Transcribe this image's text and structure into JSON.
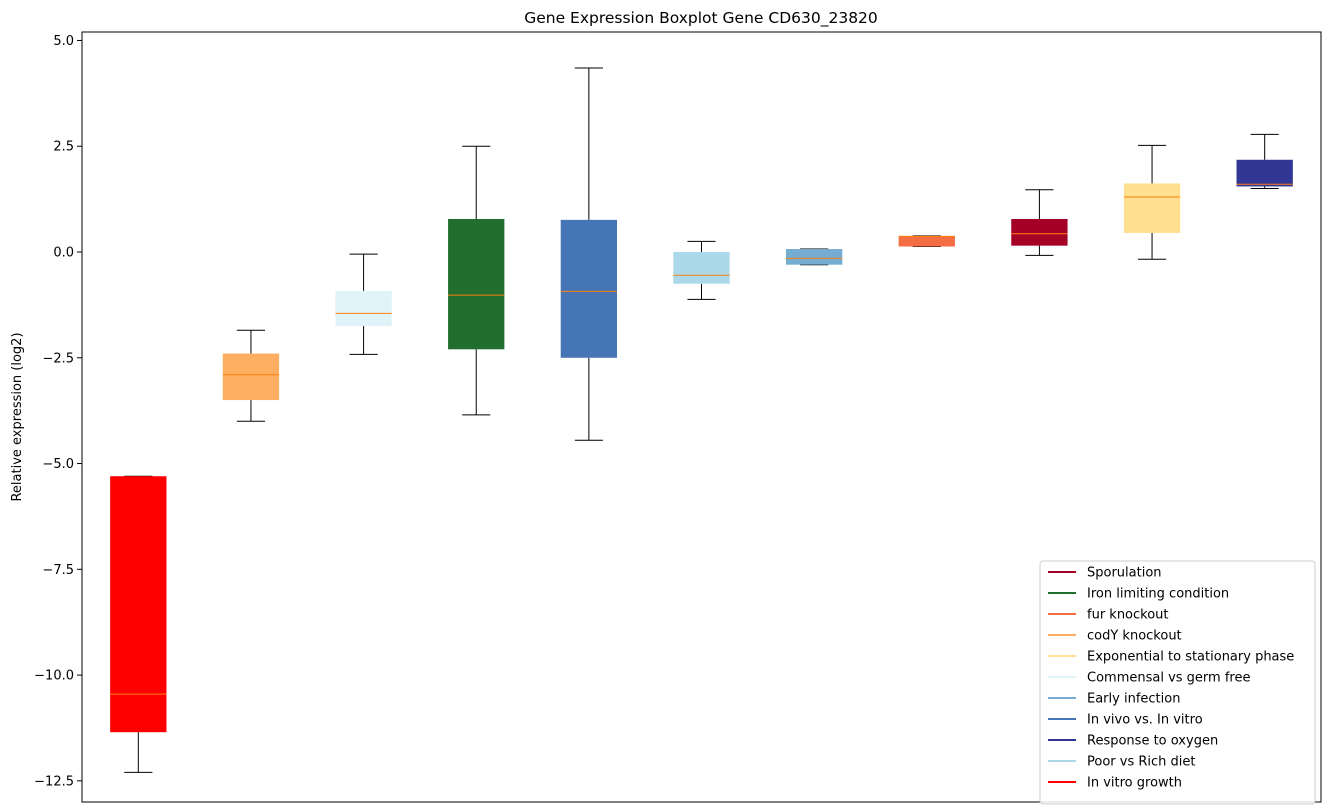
{
  "chart_data": {
    "type": "boxplot",
    "title": "Gene Expression Boxplot Gene CD630_23820",
    "xlabel": "",
    "ylabel": "Relative expression (log2)",
    "ylim": [
      -13.0,
      5.2
    ],
    "yticks": [
      5.0,
      2.5,
      0.0,
      -2.5,
      -5.0,
      -7.5,
      -10.0,
      -12.5
    ],
    "ytick_labels": [
      "5.0",
      "2.5",
      "0.0",
      "−2.5",
      "−5.0",
      "−7.5",
      "−10.0",
      "−12.5"
    ],
    "x_ticks_shown": false,
    "grid": false,
    "legend_position": "lower right",
    "median_color": "#ff7f0e",
    "boxes": [
      {
        "name": "In vitro growth",
        "color": "#ff0000",
        "whisker_low": -12.3,
        "q1": -11.35,
        "median": -10.45,
        "q3": -5.3,
        "whisker_high": -5.3
      },
      {
        "name": "codY knockout",
        "color": "#fdae61",
        "whisker_low": -4.0,
        "q1": -3.5,
        "median": -2.9,
        "q3": -2.4,
        "whisker_high": -1.85
      },
      {
        "name": "Commensal vs germ free",
        "color": "#e0f3f8",
        "whisker_low": -2.42,
        "q1": -1.75,
        "median": -1.45,
        "q3": -0.92,
        "whisker_high": -0.05
      },
      {
        "name": "Iron limiting condition",
        "color": "#226e2e",
        "whisker_low": -3.85,
        "q1": -2.3,
        "median": -1.02,
        "q3": 0.78,
        "whisker_high": 2.5
      },
      {
        "name": "In vivo vs. In vitro",
        "color": "#4575b4",
        "whisker_low": -4.45,
        "q1": -2.5,
        "median": -0.93,
        "q3": 0.76,
        "whisker_high": 4.35
      },
      {
        "name": "Poor vs Rich diet",
        "color": "#abd9e9",
        "whisker_low": -1.12,
        "q1": -0.75,
        "median": -0.55,
        "q3": 0.0,
        "whisker_high": 0.25
      },
      {
        "name": "Early infection",
        "color": "#74add1",
        "whisker_low": -0.3,
        "q1": -0.3,
        "median": -0.15,
        "q3": 0.07,
        "whisker_high": 0.07
      },
      {
        "name": "fur knockout",
        "color": "#f46d43",
        "whisker_low": 0.13,
        "q1": 0.13,
        "median": 0.37,
        "q3": 0.38,
        "whisker_high": 0.38
      },
      {
        "name": "Sporulation",
        "color": "#a50026",
        "whisker_low": -0.08,
        "q1": 0.15,
        "median": 0.43,
        "q3": 0.78,
        "whisker_high": 1.47
      },
      {
        "name": "Exponential to stationary phase",
        "color": "#fee090",
        "whisker_low": -0.17,
        "q1": 0.45,
        "median": 1.3,
        "q3": 1.62,
        "whisker_high": 2.52
      },
      {
        "name": "Response to oxygen",
        "color": "#313695",
        "whisker_low": 1.5,
        "q1": 1.55,
        "median": 1.6,
        "q3": 2.18,
        "whisker_high": 2.78
      }
    ],
    "legend": [
      {
        "label": "Sporulation",
        "color": "#a50026"
      },
      {
        "label": "Iron limiting condition",
        "color": "#226e2e"
      },
      {
        "label": "fur knockout",
        "color": "#f46d43"
      },
      {
        "label": "codY knockout",
        "color": "#fdae61"
      },
      {
        "label": "Exponential to stationary phase",
        "color": "#fee090"
      },
      {
        "label": "Commensal vs germ free",
        "color": "#e0f3f8"
      },
      {
        "label": "Early infection",
        "color": "#74add1"
      },
      {
        "label": "In vivo vs. In vitro",
        "color": "#4575b4"
      },
      {
        "label": "Response to oxygen",
        "color": "#313695"
      },
      {
        "label": "Poor vs Rich diet",
        "color": "#abd9e9"
      },
      {
        "label": "In vitro growth",
        "color": "#ff0000"
      }
    ]
  }
}
